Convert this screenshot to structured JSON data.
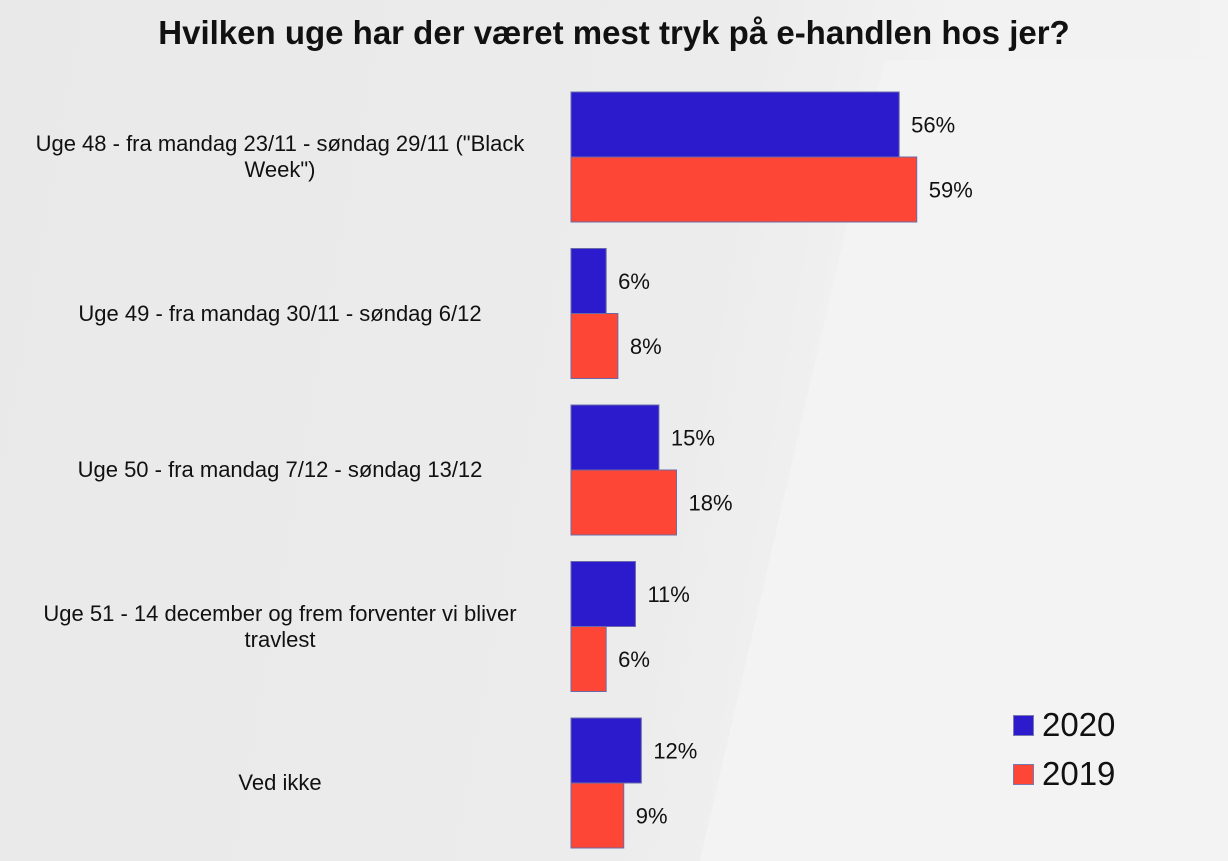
{
  "chart_data": {
    "type": "bar",
    "orientation": "horizontal",
    "title": "Hvilken uge har der været mest tryk på e-handlen hos jer?",
    "categories": [
      "Uge 48 - fra mandag 23/11 - søndag 29/11 (\"Black Week\")",
      "Uge 49 - fra mandag 30/11 - søndag 6/12",
      "Uge 50 - fra mandag 7/12 - søndag 13/12",
      "Uge 51 - 14 december og frem forventer vi bliver travlest",
      "Ved ikke"
    ],
    "series": [
      {
        "name": "2020",
        "color": "#2b1bcc",
        "values": [
          56,
          6,
          15,
          11,
          12
        ],
        "labels": [
          "56%",
          "6%",
          "15%",
          "11%",
          "12%"
        ]
      },
      {
        "name": "2019",
        "color": "#fe4636",
        "values": [
          59,
          8,
          18,
          6,
          9
        ],
        "labels": [
          "59%",
          "8%",
          "18%",
          "6%",
          "9%"
        ]
      }
    ],
    "xlim": [
      0,
      100
    ],
    "grid": false,
    "legend_position": "bottom-right"
  }
}
